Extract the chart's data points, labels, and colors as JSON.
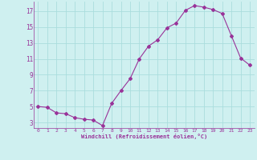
{
  "x": [
    0,
    1,
    2,
    3,
    4,
    5,
    6,
    7,
    8,
    9,
    10,
    11,
    12,
    13,
    14,
    15,
    16,
    17,
    18,
    19,
    20,
    21,
    22,
    23
  ],
  "y": [
    5.0,
    4.9,
    4.2,
    4.1,
    3.6,
    3.4,
    3.3,
    2.6,
    5.4,
    7.0,
    8.5,
    11.0,
    12.6,
    13.4,
    14.9,
    15.5,
    17.1,
    17.7,
    17.5,
    17.2,
    16.7,
    13.9,
    11.1,
    10.2
  ],
  "line_color": "#993399",
  "marker": "D",
  "marker_size": 2.0,
  "bg_color": "#cff0f0",
  "grid_color": "#aadddd",
  "xlabel": "Windchill (Refroidissement éolien,°C)",
  "xlabel_color": "#993399",
  "tick_color": "#993399",
  "ylim": [
    2.3,
    18.2
  ],
  "yticks": [
    3,
    5,
    7,
    9,
    11,
    13,
    15,
    17
  ],
  "xlim": [
    -0.5,
    23.5
  ],
  "xticks": [
    0,
    1,
    2,
    3,
    4,
    5,
    6,
    7,
    8,
    9,
    10,
    11,
    12,
    13,
    14,
    15,
    16,
    17,
    18,
    19,
    20,
    21,
    22,
    23
  ]
}
